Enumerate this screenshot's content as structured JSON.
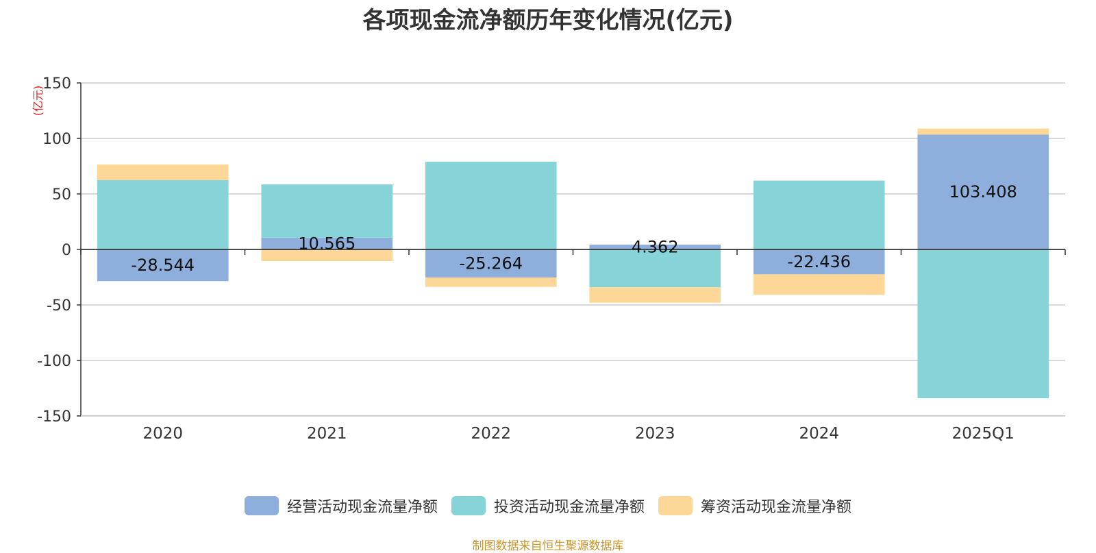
{
  "chart_data": {
    "type": "bar",
    "stacked": true,
    "title": "各项现金流净额历年变化情况(亿元)",
    "ylabel": "(亿元)",
    "ylim": [
      -150,
      150
    ],
    "yticks": [
      150,
      100,
      50,
      0,
      -50,
      -100,
      -150
    ],
    "categories": [
      "2020",
      "2021",
      "2022",
      "2023",
      "2024",
      "2025Q1"
    ],
    "series": [
      {
        "name": "经营活动现金流量净额",
        "color": "#8eaedb",
        "values": [
          -28.544,
          10.565,
          -25.264,
          4.362,
          -22.436,
          103.408
        ]
      },
      {
        "name": "投资活动现金流量净额",
        "color": "#86d4d8",
        "values": [
          62.5,
          48.0,
          79.0,
          -34.0,
          62.0,
          -134.0
        ]
      },
      {
        "name": "筹资活动现金流量净额",
        "color": "#fdd797",
        "values": [
          14.0,
          -10.5,
          -8.5,
          -14.0,
          -18.5,
          5.5
        ]
      }
    ],
    "data_labels": [
      "-28.544",
      "10.565",
      "-25.264",
      "4.362",
      "-22.436",
      "103.408"
    ],
    "grid": true,
    "legend": "bottom-center"
  },
  "source_note": "制图数据来自恒生聚源数据库"
}
